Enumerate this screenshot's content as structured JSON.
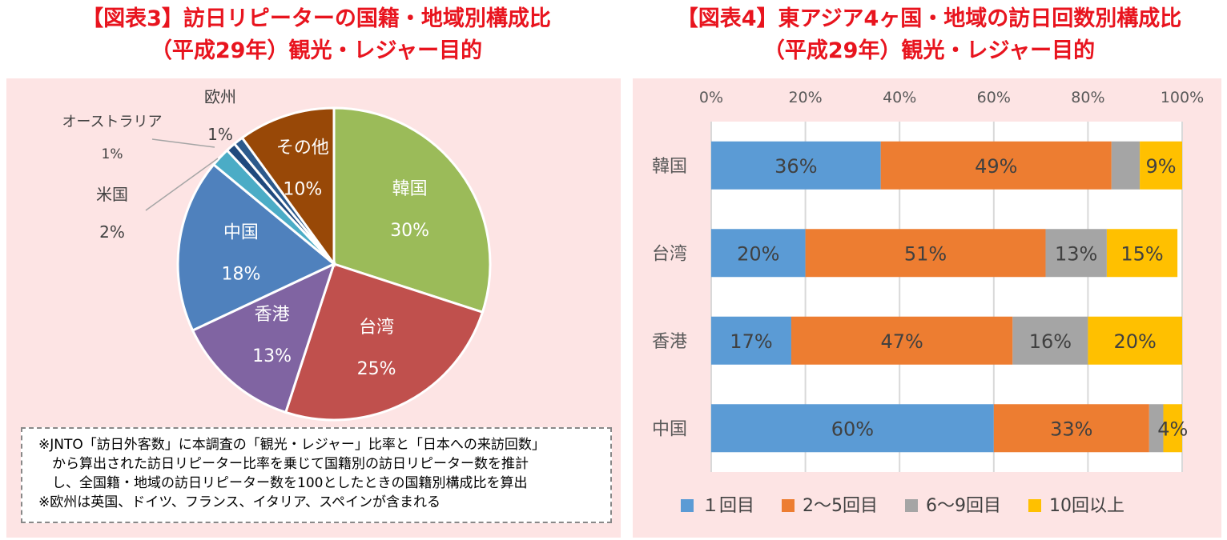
{
  "chart_data": [
    {
      "type": "pie",
      "title": [
        "【図表3】訪日リピーターの国籍・地域別構成比",
        "（平成29年）観光・レジャー目的"
      ],
      "slices": [
        {
          "label": "韓国",
          "value": 30,
          "color": "#9bbb59"
        },
        {
          "label": "台湾",
          "value": 25,
          "color": "#c0504d"
        },
        {
          "label": "香港",
          "value": 13,
          "color": "#8064a2"
        },
        {
          "label": "中国",
          "value": 18,
          "color": "#4f81bd"
        },
        {
          "label": "米国",
          "value": 2,
          "color": "#4bacc6"
        },
        {
          "label": "オーストラリア",
          "value": 1,
          "color": "#1f497d"
        },
        {
          "label": "欧州",
          "value": 1,
          "color": "#2c5a8c"
        },
        {
          "label": "その他",
          "value": 10,
          "color": "#984807"
        }
      ],
      "notes": [
        "※JNTO「訪日外客数」に本調査の「観光・レジャー」比率と「日本への来訪回数」",
        "　から算出された訪日リピーター比率を乗じて国籍別の訪日リピーター数を推計",
        "　し、全国籍・地域の訪日リピーター数を100としたときの国籍別構成比を算出",
        "※欧州は英国、ドイツ、フランス、イタリア、スペインが含まれる"
      ]
    },
    {
      "type": "bar",
      "stacked": true,
      "orientation": "horizontal",
      "title": [
        "【図表4】東アジア4ヶ国・地域の訪日回数別構成比",
        "（平成29年）観光・レジャー目的"
      ],
      "categories": [
        "韓国",
        "台湾",
        "香港",
        "中国"
      ],
      "xticks": [
        "0%",
        "20%",
        "40%",
        "60%",
        "80%",
        "100%"
      ],
      "xlim": [
        0,
        100
      ],
      "grid": true,
      "legend": "bottom",
      "series": [
        {
          "name": "１回目",
          "color": "#5b9bd5",
          "values": [
            36,
            20,
            17,
            60
          ],
          "labels": [
            "36%",
            "20%",
            "17%",
            "60%"
          ]
        },
        {
          "name": "2～5回目",
          "color": "#ed7d31",
          "values": [
            49,
            51,
            47,
            33
          ],
          "labels": [
            "49%",
            "51%",
            "47%",
            "33%"
          ]
        },
        {
          "name": "6～9回目",
          "color": "#a5a5a5",
          "values": [
            6,
            13,
            16,
            3
          ],
          "labels": [
            "",
            "13%",
            "16%",
            ""
          ]
        },
        {
          "name": "10回以上",
          "color": "#ffc000",
          "values": [
            9,
            15,
            20,
            4
          ],
          "labels": [
            "9%",
            "15%",
            "20%",
            "4%"
          ]
        }
      ]
    }
  ]
}
